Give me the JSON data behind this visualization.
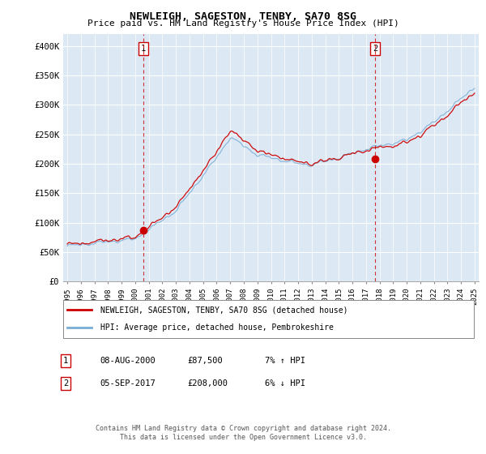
{
  "title": "NEWLEIGH, SAGESTON, TENBY, SA70 8SG",
  "subtitle": "Price paid vs. HM Land Registry's House Price Index (HPI)",
  "red_label": "NEWLEIGH, SAGESTON, TENBY, SA70 8SG (detached house)",
  "blue_label": "HPI: Average price, detached house, Pembrokeshire",
  "annotation1_label": "1",
  "annotation1_date": "08-AUG-2000",
  "annotation1_price": "£87,500",
  "annotation1_hpi": "7% ↑ HPI",
  "annotation1_year": 2000.6,
  "annotation1_value": 87500,
  "annotation2_label": "2",
  "annotation2_date": "05-SEP-2017",
  "annotation2_price": "£208,000",
  "annotation2_hpi": "6% ↓ HPI",
  "annotation2_year": 2017.67,
  "annotation2_value": 208000,
  "footer1": "Contains HM Land Registry data © Crown copyright and database right 2024.",
  "footer2": "This data is licensed under the Open Government Licence v3.0.",
  "ylim": [
    0,
    420000
  ],
  "yticks": [
    0,
    50000,
    100000,
    150000,
    200000,
    250000,
    300000,
    350000,
    400000
  ],
  "ytick_labels": [
    "£0",
    "£50K",
    "£100K",
    "£150K",
    "£200K",
    "£250K",
    "£300K",
    "£350K",
    "£400K"
  ],
  "bg_color": "#ffffff",
  "plot_bg_color": "#dce9f5",
  "grid_color": "#ffffff",
  "red_color": "#cc0000",
  "blue_color": "#7aadd4",
  "dashed_color": "#cc0000"
}
